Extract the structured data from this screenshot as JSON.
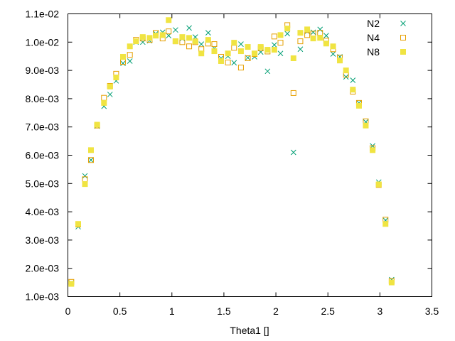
{
  "chart_data": {
    "type": "scatter",
    "title": "",
    "xlabel": "Theta1 []",
    "ylabel": "",
    "xlim": [
      0,
      3.5
    ],
    "ylim": [
      0.001,
      0.011
    ],
    "grid": false,
    "legend_position": "top-right",
    "x_ticks": [
      {
        "value": 0,
        "label": "0"
      },
      {
        "value": 0.5,
        "label": "0.5"
      },
      {
        "value": 1,
        "label": "1"
      },
      {
        "value": 1.5,
        "label": "1.5"
      },
      {
        "value": 2,
        "label": "2"
      },
      {
        "value": 2.5,
        "label": "2.5"
      },
      {
        "value": 3,
        "label": "3"
      },
      {
        "value": 3.5,
        "label": "3.5"
      }
    ],
    "y_ticks": [
      {
        "value": 0.001,
        "label": "1.0e-03"
      },
      {
        "value": 0.002,
        "label": "2.0e-03"
      },
      {
        "value": 0.003,
        "label": "3.0e-03"
      },
      {
        "value": 0.004,
        "label": "4.0e-03"
      },
      {
        "value": 0.005,
        "label": "5.0e-03"
      },
      {
        "value": 0.006,
        "label": "6.0e-03"
      },
      {
        "value": 0.007,
        "label": "7.0e-03"
      },
      {
        "value": 0.008,
        "label": "8.0e-03"
      },
      {
        "value": 0.009,
        "label": "9.0e-03"
      },
      {
        "value": 0.01,
        "label": "1.0e-02"
      },
      {
        "value": 0.011,
        "label": "1.1e-02"
      }
    ],
    "series": [
      {
        "name": "N2",
        "marker": "x",
        "color": "#009e73",
        "points": [
          [
            0.033,
            0.00148
          ],
          [
            0.099,
            0.00347
          ],
          [
            0.164,
            0.00527
          ],
          [
            0.222,
            0.00583
          ],
          [
            0.281,
            0.00703
          ],
          [
            0.347,
            0.00773
          ],
          [
            0.405,
            0.00815
          ],
          [
            0.464,
            0.00863
          ],
          [
            0.53,
            0.00925
          ],
          [
            0.596,
            0.00933
          ],
          [
            0.655,
            0.01
          ],
          [
            0.72,
            0.01
          ],
          [
            0.786,
            0.01005
          ],
          [
            0.845,
            0.0103
          ],
          [
            0.911,
            0.01035
          ],
          [
            0.969,
            0.01023
          ],
          [
            1.035,
            0.01043
          ],
          [
            1.1,
            0.01013
          ],
          [
            1.166,
            0.0105
          ],
          [
            1.225,
            0.01018
          ],
          [
            1.283,
            0.00993
          ],
          [
            1.349,
            0.01033
          ],
          [
            1.408,
            0.00978
          ],
          [
            1.473,
            0.00943
          ],
          [
            1.539,
            0.0095
          ],
          [
            1.598,
            0.00927
          ],
          [
            1.664,
            0.00993
          ],
          [
            1.73,
            0.00945
          ],
          [
            1.795,
            0.00948
          ],
          [
            1.854,
            0.00965
          ],
          [
            1.92,
            0.00897
          ],
          [
            1.985,
            0.0099
          ],
          [
            2.044,
            0.0096
          ],
          [
            2.11,
            0.0103
          ],
          [
            2.169,
            0.0061
          ],
          [
            2.235,
            0.00975
          ],
          [
            2.301,
            0.01038
          ],
          [
            2.359,
            0.01035
          ],
          [
            2.425,
            0.01045
          ],
          [
            2.484,
            0.01023
          ],
          [
            2.55,
            0.00958
          ],
          [
            2.615,
            0.00948
          ],
          [
            2.674,
            0.00877
          ],
          [
            2.74,
            0.00865
          ],
          [
            2.799,
            0.00785
          ],
          [
            2.864,
            0.00718
          ],
          [
            2.93,
            0.00633
          ],
          [
            2.989,
            0.00505
          ],
          [
            3.054,
            0.0037
          ],
          [
            3.113,
            0.0016
          ]
        ]
      },
      {
        "name": "N4",
        "marker": "open-square",
        "color": "#e69f00",
        "points": [
          [
            0.033,
            0.00152
          ],
          [
            0.099,
            0.00355
          ],
          [
            0.164,
            0.00515
          ],
          [
            0.222,
            0.00583
          ],
          [
            0.281,
            0.00705
          ],
          [
            0.347,
            0.00803
          ],
          [
            0.405,
            0.00845
          ],
          [
            0.464,
            0.00888
          ],
          [
            0.53,
            0.0093
          ],
          [
            0.596,
            0.00955
          ],
          [
            0.655,
            0.01008
          ],
          [
            0.72,
            0.01013
          ],
          [
            0.786,
            0.01008
          ],
          [
            0.845,
            0.01033
          ],
          [
            0.911,
            0.01013
          ],
          [
            0.969,
            0.01038
          ],
          [
            1.035,
            0.01003
          ],
          [
            1.1,
            0.01
          ],
          [
            1.166,
            0.00985
          ],
          [
            1.225,
            0.01
          ],
          [
            1.283,
            0.00975
          ],
          [
            1.349,
            0.00995
          ],
          [
            1.408,
            0.00993
          ],
          [
            1.473,
            0.00948
          ],
          [
            1.539,
            0.00928
          ],
          [
            1.598,
            0.0098
          ],
          [
            1.664,
            0.0091
          ],
          [
            1.73,
            0.00943
          ],
          [
            1.795,
            0.00958
          ],
          [
            1.854,
            0.00978
          ],
          [
            1.92,
            0.00967
          ],
          [
            1.985,
            0.0102
          ],
          [
            2.044,
            0.00998
          ],
          [
            2.11,
            0.0106
          ],
          [
            2.169,
            0.0082
          ],
          [
            2.235,
            0.01003
          ],
          [
            2.301,
            0.01025
          ],
          [
            2.359,
            0.0103
          ],
          [
            2.425,
            0.01033
          ],
          [
            2.484,
            0.01005
          ],
          [
            2.55,
            0.00975
          ],
          [
            2.615,
            0.00945
          ],
          [
            2.674,
            0.00885
          ],
          [
            2.74,
            0.00825
          ],
          [
            2.799,
            0.00785
          ],
          [
            2.864,
            0.0072
          ],
          [
            2.93,
            0.00625
          ],
          [
            2.989,
            0.00495
          ],
          [
            3.054,
            0.00372
          ],
          [
            3.113,
            0.00155
          ]
        ]
      },
      {
        "name": "N8",
        "marker": "filled-square",
        "color": "#f0e442",
        "points": [
          [
            0.033,
            0.00145
          ],
          [
            0.099,
            0.00357
          ],
          [
            0.164,
            0.00498
          ],
          [
            0.222,
            0.00618
          ],
          [
            0.281,
            0.00708
          ],
          [
            0.347,
            0.00785
          ],
          [
            0.405,
            0.00843
          ],
          [
            0.464,
            0.00875
          ],
          [
            0.53,
            0.00948
          ],
          [
            0.596,
            0.00985
          ],
          [
            0.655,
            0.01003
          ],
          [
            0.72,
            0.01018
          ],
          [
            0.786,
            0.01015
          ],
          [
            0.845,
            0.01023
          ],
          [
            0.911,
            0.01025
          ],
          [
            0.969,
            0.01078
          ],
          [
            1.035,
            0.01003
          ],
          [
            1.1,
            0.01018
          ],
          [
            1.166,
            0.01015
          ],
          [
            1.225,
            0.01003
          ],
          [
            1.283,
            0.0096
          ],
          [
            1.349,
            0.01008
          ],
          [
            1.408,
            0.00968
          ],
          [
            1.473,
            0.00933
          ],
          [
            1.539,
            0.0096
          ],
          [
            1.598,
            0.00998
          ],
          [
            1.664,
            0.00968
          ],
          [
            1.73,
            0.00983
          ],
          [
            1.795,
            0.0096
          ],
          [
            1.854,
            0.00983
          ],
          [
            1.92,
            0.00973
          ],
          [
            1.985,
            0.00973
          ],
          [
            2.044,
            0.01025
          ],
          [
            2.11,
            0.01048
          ],
          [
            2.169,
            0.00943
          ],
          [
            2.235,
            0.01033
          ],
          [
            2.301,
            0.01045
          ],
          [
            2.359,
            0.01013
          ],
          [
            2.425,
            0.01015
          ],
          [
            2.484,
            0.00995
          ],
          [
            2.55,
            0.00985
          ],
          [
            2.615,
            0.00935
          ],
          [
            2.674,
            0.009
          ],
          [
            2.74,
            0.00832
          ],
          [
            2.799,
            0.00775
          ],
          [
            2.864,
            0.00705
          ],
          [
            2.93,
            0.00618
          ],
          [
            2.989,
            0.00497
          ],
          [
            3.054,
            0.00357
          ],
          [
            3.113,
            0.0015
          ]
        ]
      }
    ]
  }
}
